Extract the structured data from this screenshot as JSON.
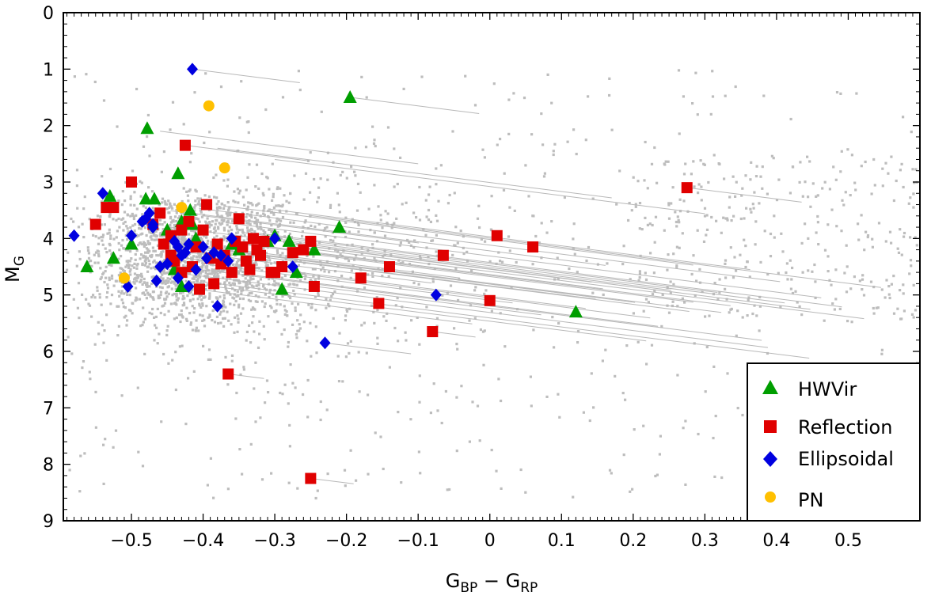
{
  "chart_data": {
    "type": "scatter",
    "xlabel": "G",
    "xlabel_sub1": "BP",
    "xlabel_mid": " − G",
    "xlabel_sub2": "RP",
    "ylabel": "M",
    "ylabel_sub": "G",
    "xlim": [
      -0.595,
      0.6
    ],
    "ylim": [
      9,
      0
    ],
    "y_inverted": true,
    "x_ticks": [
      -0.5,
      -0.4,
      -0.3,
      -0.2,
      -0.1,
      0,
      0.1,
      0.2,
      0.3,
      0.4,
      0.5
    ],
    "x_tick_labels": [
      "−0.5",
      "−0.4",
      "−0.3",
      "−0.2",
      "−0.1",
      "0",
      "0.1",
      "0.2",
      "0.3",
      "0.4",
      "0.5"
    ],
    "y_ticks": [
      0,
      1,
      2,
      3,
      4,
      5,
      6,
      7,
      8,
      9
    ],
    "y_tick_labels": [
      "0",
      "1",
      "2",
      "3",
      "4",
      "5",
      "6",
      "7",
      "8",
      "9"
    ],
    "legend_position": "bottom-right",
    "background_color": "#bdbdbd",
    "reddening_color": "#b8b8b8",
    "series": [
      {
        "name": "HWVir",
        "marker": "triangle",
        "color": "#009e00",
        "x": [
          -0.562,
          -0.525,
          -0.53,
          -0.5,
          -0.48,
          -0.478,
          -0.468,
          -0.435,
          -0.45,
          -0.43,
          -0.418,
          -0.415,
          -0.41,
          -0.36,
          -0.35,
          -0.31,
          -0.3,
          -0.29,
          -0.28,
          -0.27,
          -0.245,
          -0.21,
          -0.195,
          0.12,
          -0.43,
          -0.44
        ],
        "y": [
          4.5,
          4.35,
          3.25,
          4.1,
          3.3,
          2.05,
          3.3,
          2.85,
          3.85,
          3.7,
          3.5,
          3.75,
          4.0,
          4.1,
          4.2,
          4.05,
          3.95,
          4.9,
          4.05,
          4.6,
          4.2,
          3.8,
          1.5,
          5.3,
          4.85,
          4.55
        ]
      },
      {
        "name": "Reflection",
        "marker": "square",
        "color": "#e00000",
        "x": [
          -0.55,
          -0.535,
          -0.525,
          -0.5,
          -0.47,
          -0.46,
          -0.445,
          -0.43,
          -0.425,
          -0.42,
          -0.4,
          -0.385,
          -0.36,
          -0.35,
          -0.345,
          -0.33,
          -0.32,
          -0.3,
          -0.29,
          -0.275,
          -0.26,
          -0.25,
          -0.245,
          -0.18,
          -0.155,
          -0.14,
          -0.08,
          -0.065,
          0.0,
          0.01,
          0.06,
          0.275,
          -0.365,
          -0.25,
          -0.44,
          -0.41,
          -0.395,
          -0.38,
          -0.37,
          -0.355,
          -0.34,
          -0.335,
          -0.325,
          -0.315,
          -0.305,
          -0.405,
          -0.415,
          -0.43,
          -0.445,
          -0.455,
          -0.39,
          -0.375
        ],
        "y": [
          3.75,
          3.45,
          3.45,
          3.0,
          3.75,
          3.55,
          3.95,
          3.85,
          2.35,
          3.7,
          3.85,
          4.8,
          4.6,
          3.65,
          4.15,
          4.0,
          4.3,
          4.6,
          4.5,
          4.25,
          4.2,
          4.05,
          4.85,
          4.7,
          5.15,
          4.5,
          5.65,
          4.3,
          5.1,
          3.95,
          4.15,
          3.1,
          6.4,
          8.25,
          4.4,
          4.15,
          3.4,
          4.1,
          4.3,
          4.05,
          4.4,
          4.55,
          4.2,
          4.05,
          4.6,
          4.9,
          4.5,
          4.6,
          4.3,
          4.1,
          4.35,
          4.45
        ]
      },
      {
        "name": "Ellipsoidal",
        "marker": "diamond",
        "color": "#0000e0",
        "x": [
          -0.58,
          -0.54,
          -0.505,
          -0.5,
          -0.485,
          -0.48,
          -0.475,
          -0.47,
          -0.465,
          -0.47,
          -0.46,
          -0.45,
          -0.44,
          -0.435,
          -0.43,
          -0.425,
          -0.42,
          -0.415,
          -0.41,
          -0.4,
          -0.395,
          -0.385,
          -0.38,
          -0.375,
          -0.365,
          -0.36,
          -0.3,
          -0.275,
          -0.23,
          -0.075,
          -0.435,
          -0.42
        ],
        "y": [
          3.95,
          3.2,
          4.85,
          3.95,
          3.7,
          3.65,
          3.55,
          3.75,
          4.75,
          3.8,
          4.5,
          4.45,
          4.05,
          4.7,
          4.3,
          4.25,
          4.1,
          1.0,
          4.55,
          4.15,
          4.35,
          4.25,
          5.2,
          4.3,
          4.4,
          4.0,
          4.0,
          4.5,
          5.85,
          5.0,
          4.15,
          4.85
        ]
      },
      {
        "name": "PN",
        "marker": "circle",
        "color": "#ffc000",
        "x": [
          -0.51,
          -0.392,
          -0.37,
          -0.43
        ],
        "y": [
          4.7,
          1.65,
          2.75,
          3.45
        ]
      }
    ]
  }
}
